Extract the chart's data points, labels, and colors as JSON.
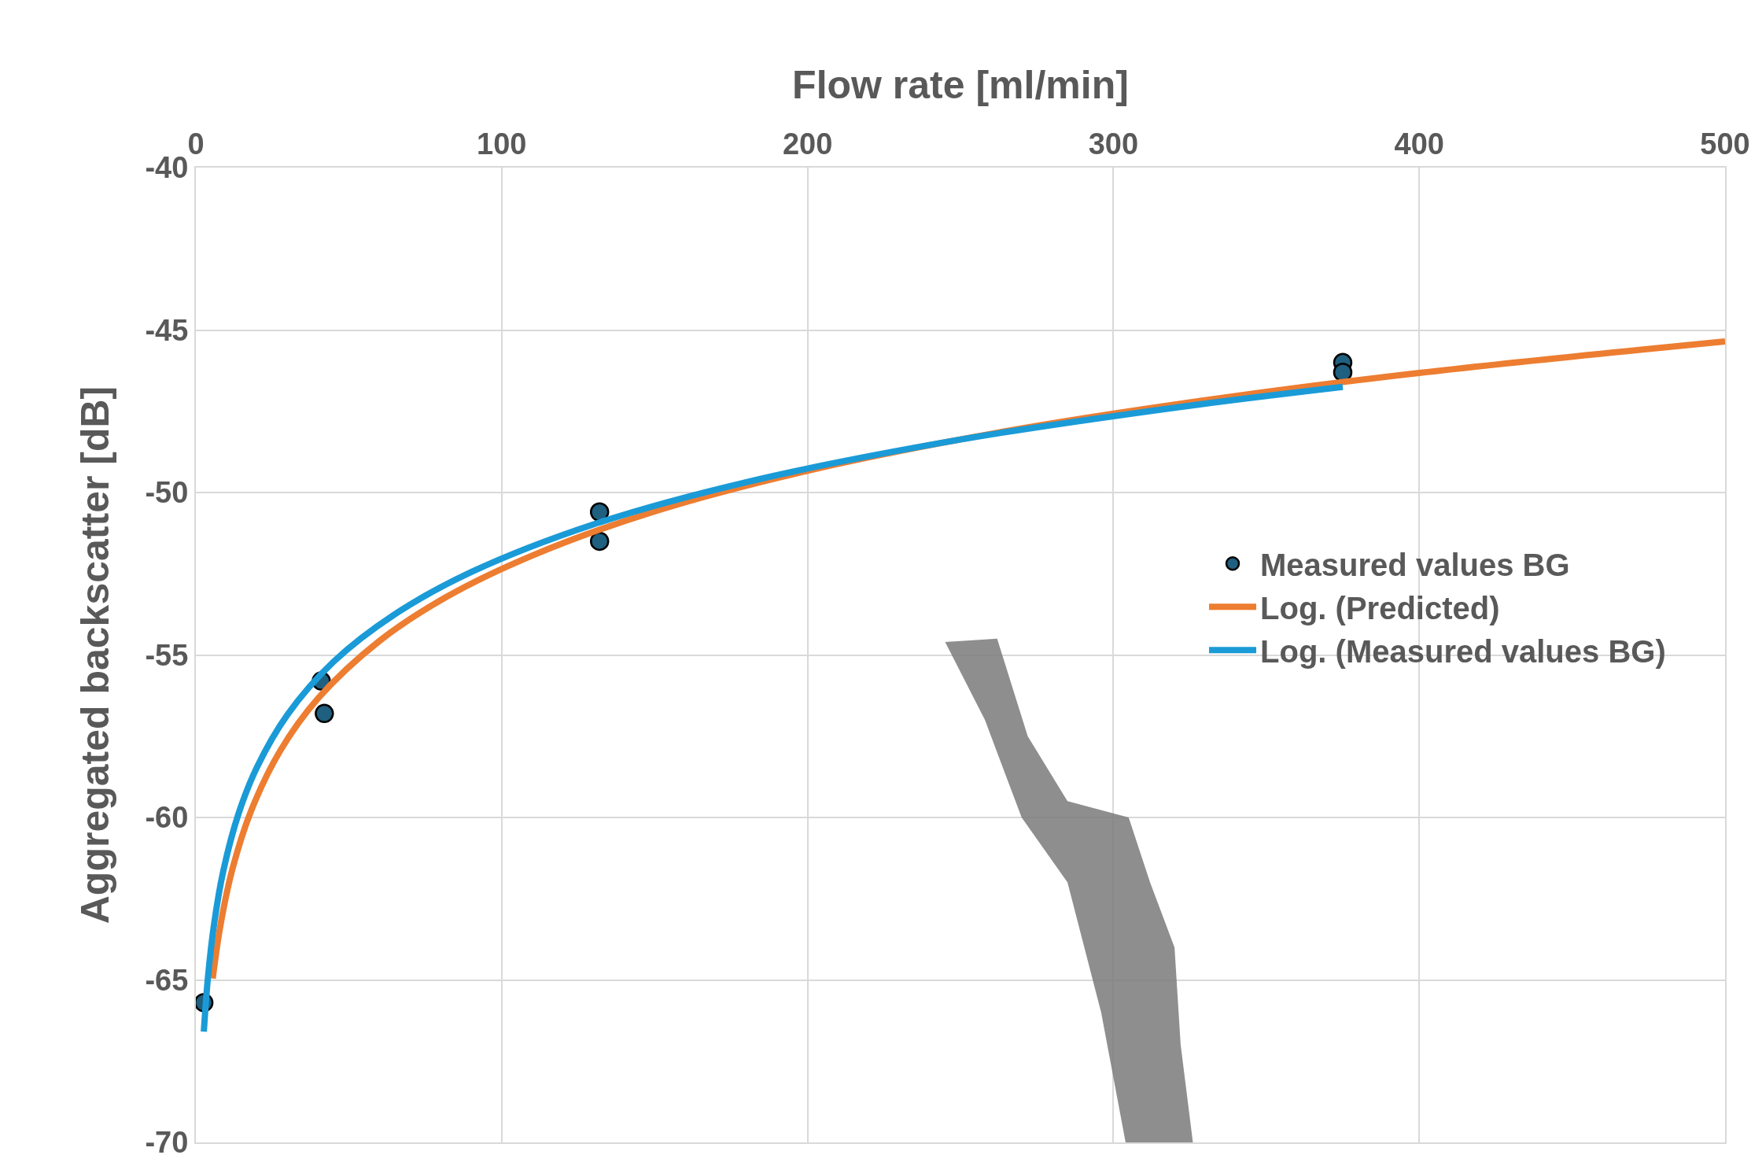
{
  "chart_data": {
    "type": "scatter",
    "xlabel": "Flow rate [ml/min]",
    "ylabel": "Aggregated backscatter [dB]",
    "xlim": [
      0,
      500
    ],
    "xticks": [
      0,
      100,
      200,
      300,
      400,
      500
    ],
    "ylim": [
      -70,
      -40
    ],
    "yticks": [
      -70,
      -65,
      -60,
      -55,
      -50,
      -45,
      -40
    ],
    "grid": true,
    "legend": "right",
    "series": [
      {
        "name": "Measured values BG",
        "marker": "circle",
        "color": "#1f5f7f",
        "x": [
          2.6,
          41,
          42,
          132,
          132,
          375,
          375
        ],
        "values": [
          -65.7,
          -55.8,
          -56.8,
          -50.6,
          -51.5,
          -46.0,
          -46.3
        ]
      },
      {
        "name": "Log. (Predicted)",
        "type": "line",
        "marker": "none",
        "color": "#ed7d31",
        "x": [
          5.5,
          8,
          12,
          18,
          27.5,
          40,
          60,
          82,
          110,
          150,
          200,
          265,
          330,
          400,
          500
        ],
        "values": [
          -64.96,
          -63.34,
          -61.57,
          -59.81,
          -57.96,
          -56.33,
          -54.57,
          -53.21,
          -51.94,
          -50.58,
          -49.33,
          -48.11,
          -47.16,
          -46.32,
          -45.35
        ]
      },
      {
        "name": "Log. (Measured values BG)",
        "type": "line",
        "marker": "none",
        "color": "#1a9bd7",
        "x": [
          2.6,
          4,
          6,
          9,
          14,
          20,
          30,
          45,
          65,
          90,
          130,
          180,
          250,
          320,
          375
        ],
        "values": [
          -66.59,
          -64.87,
          -63.25,
          -61.63,
          -59.87,
          -58.45,
          -56.83,
          -55.21,
          -53.75,
          -52.45,
          -50.98,
          -49.68,
          -48.37,
          -47.39,
          -46.75
        ]
      }
    ]
  }
}
